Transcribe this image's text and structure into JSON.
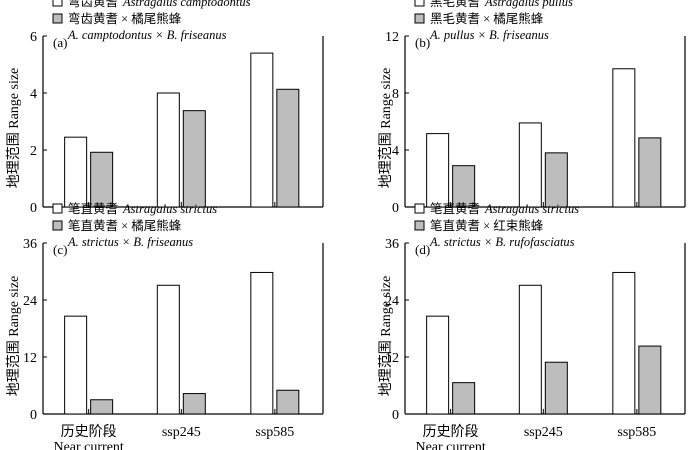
{
  "chart_data": [
    {
      "panel_label": "(a)",
      "type": "bar",
      "ylabel": "地理范围 Range size",
      "ylim": [
        0,
        6
      ],
      "yticks": [
        "0",
        "2",
        "4",
        "6"
      ],
      "categories": [
        "历史阶段",
        "ssp245",
        "ssp585"
      ],
      "category_sublabels": [
        "Near current",
        "",
        ""
      ],
      "series": [
        {
          "name": "弯齿黄耆",
          "name_latin": "Astragalus camptodontus",
          "color": "#ffffff",
          "values": [
            2.45,
            4.0,
            5.4
          ]
        },
        {
          "name": "弯齿黄耆 × 橘尾熊蜂",
          "name_latin": "A. camptodontus × B. friseanus",
          "color": "#bdbdbd",
          "values": [
            1.92,
            3.38,
            4.13
          ]
        }
      ]
    },
    {
      "panel_label": "(b)",
      "type": "bar",
      "ylabel": "地理范围 Range size",
      "ylim": [
        0,
        12
      ],
      "yticks": [
        "0",
        "4",
        "8",
        "12"
      ],
      "categories": [
        "历史阶段",
        "ssp245",
        "ssp585"
      ],
      "category_sublabels": [
        "Near current",
        "",
        ""
      ],
      "series": [
        {
          "name": "黑毛黄耆",
          "name_latin": "Astragalus pullus",
          "color": "#ffffff",
          "values": [
            5.15,
            5.9,
            9.7
          ]
        },
        {
          "name": "黑毛黄耆 × 橘尾熊蜂",
          "name_latin": "A. pullus × B. friseanus",
          "color": "#bdbdbd",
          "values": [
            2.9,
            3.8,
            4.85
          ]
        }
      ]
    },
    {
      "panel_label": "(c)",
      "type": "bar",
      "ylabel": "地理范围 Range size",
      "ylim": [
        0,
        36
      ],
      "yticks": [
        "0",
        "12",
        "24",
        "36"
      ],
      "categories": [
        "历史阶段",
        "ssp245",
        "ssp585"
      ],
      "category_sublabels": [
        "Near current",
        "",
        ""
      ],
      "series": [
        {
          "name": "笔直黄耆",
          "name_latin": "Astragalus strictus",
          "color": "#ffffff",
          "values": [
            20.6,
            27.1,
            29.8
          ]
        },
        {
          "name": "笔直黄耆 × 橘尾熊蜂",
          "name_latin": "A. strictus × B. friseanus",
          "color": "#bdbdbd",
          "values": [
            3.0,
            4.3,
            5.0
          ]
        }
      ]
    },
    {
      "panel_label": "(d)",
      "type": "bar",
      "ylabel": "地理范围 Range size",
      "ylim": [
        0,
        36
      ],
      "yticks": [
        "0",
        "12",
        "24",
        "36"
      ],
      "categories": [
        "历史阶段",
        "ssp245",
        "ssp585"
      ],
      "category_sublabels": [
        "Near current",
        "",
        ""
      ],
      "series": [
        {
          "name": "笔直黄耆",
          "name_latin": "Astragalus strictus",
          "color": "#ffffff",
          "values": [
            20.6,
            27.1,
            29.8
          ]
        },
        {
          "name": "笔直黄耆 × 红束熊蜂",
          "name_latin": "A. strictus × B. rufofasciatus",
          "color": "#bdbdbd",
          "values": [
            6.6,
            10.9,
            14.3
          ]
        }
      ]
    }
  ]
}
